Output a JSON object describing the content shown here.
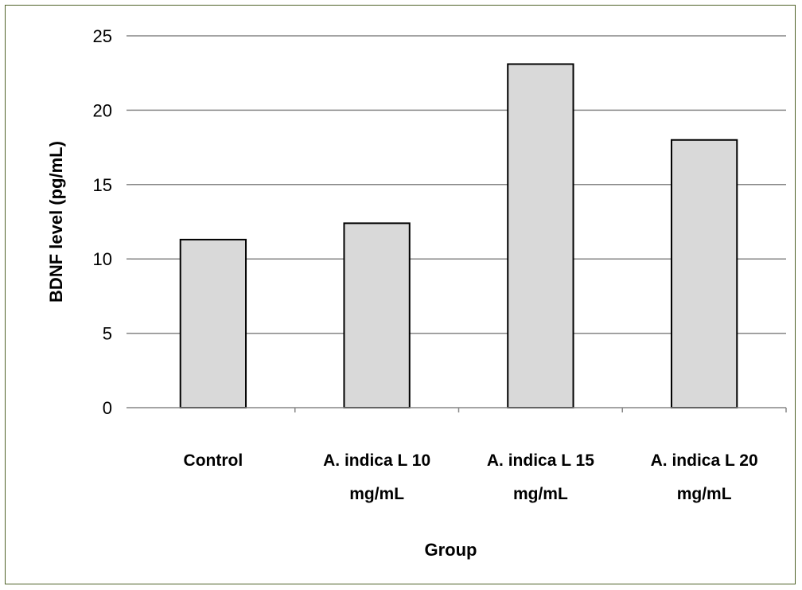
{
  "chart_data": {
    "type": "bar",
    "categories": [
      [
        "Control"
      ],
      [
        "A. indica  L 10",
        "mg/mL"
      ],
      [
        "A. indica  L 15",
        "mg/mL"
      ],
      [
        "A. indica  L 20",
        "mg/mL"
      ]
    ],
    "values": [
      11.3,
      12.4,
      23.1,
      18.0
    ],
    "xlabel": "Group",
    "ylabel": "BDNF level (pg/mL)",
    "ylim": [
      0,
      25
    ],
    "yticks": [
      "0",
      "5",
      "10",
      "15",
      "20",
      "25"
    ],
    "grid": true,
    "bar_color": "#d9d9d9",
    "bar_edge_color": "#000000",
    "grid_color": "#868686",
    "frame_color": "#4f6228"
  }
}
